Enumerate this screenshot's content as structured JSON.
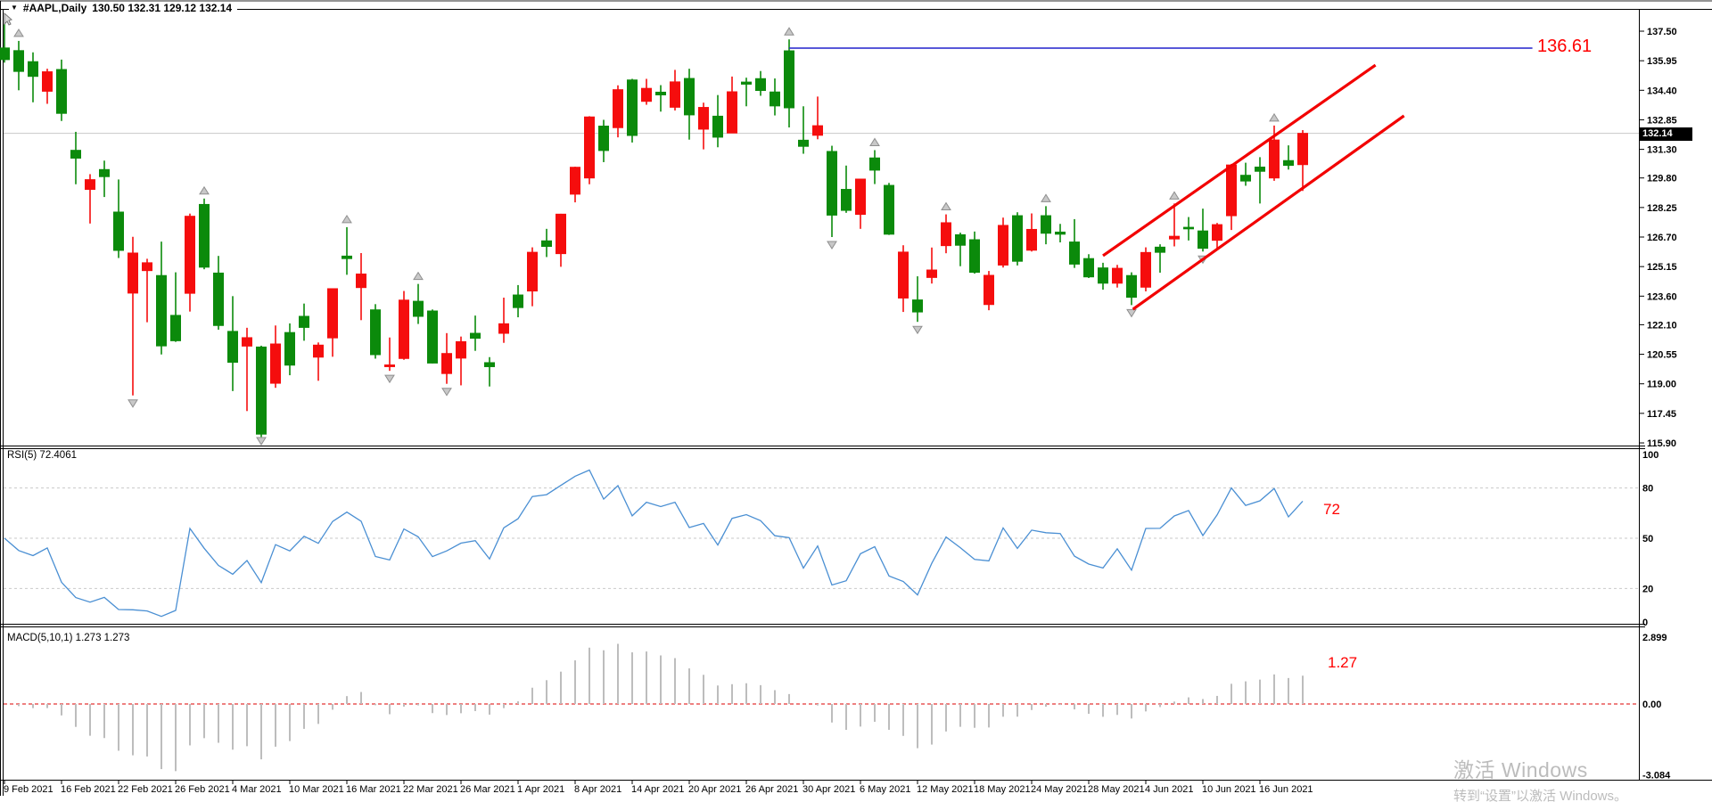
{
  "window": {
    "dropdown_icon": "▼",
    "symbol_period": "#AAPL,Daily",
    "ohlc_line": "130.50 132.31 129.12 132.14",
    "current_price": "132.14"
  },
  "indicator_labels": {
    "rsi": "RSI(5) 72.4061",
    "macd": "MACD(5,10,1) 1.273 1.273"
  },
  "annotations": {
    "resistance_label": "136.61",
    "rsi_label": "72",
    "macd_label": "1.27"
  },
  "watermark": {
    "line1": "激活 Windows",
    "line2": "转到“设置”以激活 Windows。"
  },
  "axes": {
    "price_ticks": [
      "137.50",
      "135.95",
      "134.40",
      "132.85",
      "131.30",
      "129.80",
      "128.25",
      "126.70",
      "125.15",
      "123.60",
      "122.10",
      "120.55",
      "119.00",
      "117.45",
      "115.90"
    ],
    "rsi_ticks": [
      "100",
      "80",
      "50",
      "20",
      "0"
    ],
    "rsi_dashed_levels": [
      80,
      50,
      20
    ],
    "macd_ticks": [
      "2.899",
      "0.00",
      "-3.084"
    ],
    "dates": [
      "9 Feb 2021",
      "16 Feb 2021",
      "22 Feb 2021",
      "26 Feb 2021",
      "4 Mar 2021",
      "10 Mar 2021",
      "16 Mar 2021",
      "22 Mar 2021",
      "26 Mar 2021",
      "1 Apr 2021",
      "8 Apr 2021",
      "14 Apr 2021",
      "20 Apr 2021",
      "26 Apr 2021",
      "30 Apr 2021",
      "6 May 2021",
      "12 May 2021",
      "18 May 2021",
      "24 May 2021",
      "28 May 2021",
      "4 Jun 2021",
      "10 Jun 2021",
      "16 Jun 2021"
    ],
    "date_label_step_bars": 4
  },
  "chart_data": {
    "type": "candlestick",
    "symbol": "#AAPL",
    "timeframe": "Daily",
    "title": "#AAPL,Daily 130.50 132.31 129.12 132.14",
    "ylim": [
      115.9,
      137.5
    ],
    "rsi_ylim": [
      0,
      100
    ],
    "macd_ylim": [
      -3.084,
      2.899
    ],
    "colors": {
      "bull": "#f50d0d",
      "bear": "#0b8a0b",
      "rsi_line": "#4a8fd3",
      "macd_hist": "#bdbdbd",
      "annotation_red": "#ff0000",
      "resistance_blue": "#2121cc",
      "grid_gray": "#c9c9c9",
      "macd_zero_red": "#dd0000",
      "fractal_gray": "#c8c8c8"
    },
    "candles": [
      [
        "2021-02-09",
        136.62,
        137.88,
        135.85,
        136.01
      ],
      [
        "2021-02-10",
        136.48,
        136.99,
        134.4,
        135.39
      ],
      [
        "2021-02-11",
        135.9,
        136.39,
        133.77,
        135.13
      ],
      [
        "2021-02-12",
        134.35,
        135.53,
        133.69,
        135.37
      ],
      [
        "2021-02-16",
        135.49,
        136.01,
        132.79,
        133.19
      ],
      [
        "2021-02-17",
        131.25,
        132.22,
        129.47,
        130.84
      ],
      [
        "2021-02-18",
        129.2,
        130.0,
        127.41,
        129.71
      ],
      [
        "2021-02-19",
        130.24,
        130.71,
        128.8,
        129.87
      ],
      [
        "2021-02-22",
        128.01,
        129.72,
        125.6,
        126.0
      ],
      [
        "2021-02-23",
        123.76,
        126.71,
        118.39,
        125.86
      ],
      [
        "2021-02-24",
        124.94,
        125.56,
        122.23,
        125.35
      ],
      [
        "2021-02-25",
        124.68,
        126.46,
        120.54,
        120.99
      ],
      [
        "2021-02-26",
        122.59,
        124.85,
        121.2,
        121.26
      ],
      [
        "2021-03-01",
        123.75,
        127.93,
        122.79,
        127.79
      ],
      [
        "2021-03-02",
        128.41,
        128.72,
        125.01,
        125.12
      ],
      [
        "2021-03-03",
        124.81,
        125.71,
        121.84,
        122.06
      ],
      [
        "2021-03-04",
        121.75,
        123.6,
        118.62,
        120.13
      ],
      [
        "2021-03-05",
        120.98,
        121.94,
        117.57,
        121.42
      ],
      [
        "2021-03-08",
        120.93,
        121.0,
        116.21,
        116.36
      ],
      [
        "2021-03-09",
        119.03,
        122.06,
        118.79,
        121.09
      ],
      [
        "2021-03-10",
        121.69,
        122.17,
        119.45,
        119.98
      ],
      [
        "2021-03-11",
        122.54,
        123.21,
        121.26,
        121.96
      ],
      [
        "2021-03-12",
        120.4,
        121.17,
        119.16,
        121.03
      ],
      [
        "2021-03-15",
        121.41,
        124.0,
        120.42,
        123.99
      ],
      [
        "2021-03-16",
        125.7,
        127.22,
        124.72,
        125.57
      ],
      [
        "2021-03-17",
        124.05,
        125.86,
        122.34,
        124.76
      ],
      [
        "2021-03-18",
        122.88,
        123.18,
        120.32,
        120.53
      ],
      [
        "2021-03-19",
        119.9,
        121.43,
        119.68,
        119.99
      ],
      [
        "2021-03-22",
        120.33,
        123.87,
        120.26,
        123.39
      ],
      [
        "2021-03-23",
        123.33,
        124.24,
        122.14,
        122.54
      ],
      [
        "2021-03-24",
        122.82,
        122.9,
        120.07,
        120.09
      ],
      [
        "2021-03-25",
        119.54,
        121.66,
        119.0,
        120.59
      ],
      [
        "2021-03-26",
        120.35,
        121.48,
        118.92,
        121.21
      ],
      [
        "2021-03-29",
        121.65,
        122.58,
        120.73,
        121.39
      ],
      [
        "2021-03-30",
        120.11,
        120.4,
        118.86,
        119.9
      ],
      [
        "2021-03-31",
        121.65,
        123.52,
        121.15,
        122.15
      ],
      [
        "2021-04-01",
        123.66,
        124.18,
        122.49,
        123.0
      ],
      [
        "2021-04-05",
        123.87,
        126.16,
        123.07,
        125.9
      ],
      [
        "2021-04-06",
        126.5,
        127.13,
        125.65,
        126.21
      ],
      [
        "2021-04-07",
        125.83,
        127.92,
        125.14,
        127.9
      ],
      [
        "2021-04-08",
        128.95,
        130.39,
        128.52,
        130.36
      ],
      [
        "2021-04-09",
        129.8,
        133.04,
        129.47,
        133.0
      ],
      [
        "2021-04-12",
        132.52,
        132.85,
        130.63,
        131.24
      ],
      [
        "2021-04-13",
        132.44,
        134.66,
        131.93,
        134.43
      ],
      [
        "2021-04-14",
        134.94,
        135.0,
        131.66,
        132.03
      ],
      [
        "2021-04-15",
        133.82,
        135.0,
        133.64,
        134.5
      ],
      [
        "2021-04-16",
        134.3,
        134.67,
        133.28,
        134.16
      ],
      [
        "2021-04-19",
        133.51,
        135.47,
        133.34,
        134.84
      ],
      [
        "2021-04-20",
        135.02,
        135.53,
        131.81,
        133.11
      ],
      [
        "2021-04-21",
        132.36,
        133.75,
        131.3,
        133.5
      ],
      [
        "2021-04-22",
        133.04,
        134.15,
        131.41,
        131.94
      ],
      [
        "2021-04-23",
        132.16,
        135.12,
        132.16,
        134.32
      ],
      [
        "2021-04-26",
        134.83,
        135.06,
        133.56,
        134.72
      ],
      [
        "2021-04-27",
        135.01,
        135.41,
        134.11,
        134.39
      ],
      [
        "2021-04-28",
        134.31,
        135.02,
        133.08,
        133.58
      ],
      [
        "2021-04-29",
        136.47,
        137.07,
        132.45,
        133.48
      ],
      [
        "2021-04-30",
        131.78,
        133.56,
        131.07,
        131.46
      ],
      [
        "2021-05-03",
        132.04,
        134.07,
        131.83,
        132.54
      ],
      [
        "2021-05-04",
        131.19,
        131.49,
        126.7,
        127.85
      ],
      [
        "2021-05-05",
        129.2,
        130.45,
        127.97,
        128.1
      ],
      [
        "2021-05-06",
        127.89,
        129.75,
        127.13,
        129.74
      ],
      [
        "2021-05-07",
        130.85,
        131.26,
        129.48,
        130.21
      ],
      [
        "2021-05-10",
        129.41,
        129.54,
        126.81,
        126.85
      ],
      [
        "2021-05-11",
        123.5,
        126.27,
        122.77,
        125.91
      ],
      [
        "2021-05-12",
        123.4,
        124.64,
        122.25,
        122.77
      ],
      [
        "2021-05-13",
        124.58,
        126.15,
        124.26,
        124.97
      ],
      [
        "2021-05-14",
        126.25,
        127.89,
        125.85,
        127.45
      ],
      [
        "2021-05-17",
        126.82,
        126.93,
        125.17,
        126.27
      ],
      [
        "2021-05-18",
        126.56,
        126.99,
        124.78,
        124.85
      ],
      [
        "2021-05-19",
        123.16,
        124.92,
        122.86,
        124.69
      ],
      [
        "2021-05-20",
        125.23,
        127.72,
        125.1,
        127.31
      ],
      [
        "2021-05-21",
        127.82,
        128.0,
        125.21,
        125.43
      ],
      [
        "2021-05-24",
        126.01,
        127.94,
        125.94,
        127.1
      ],
      [
        "2021-05-25",
        127.82,
        128.32,
        126.32,
        126.9
      ],
      [
        "2021-05-26",
        126.96,
        127.39,
        126.42,
        126.85
      ],
      [
        "2021-05-27",
        126.44,
        127.64,
        125.08,
        125.28
      ],
      [
        "2021-05-28",
        125.57,
        125.8,
        124.55,
        124.61
      ],
      [
        "2021-06-01",
        125.08,
        125.35,
        123.94,
        124.28
      ],
      [
        "2021-06-02",
        124.28,
        125.24,
        124.05,
        125.06
      ],
      [
        "2021-06-03",
        124.68,
        124.85,
        123.13,
        123.54
      ],
      [
        "2021-06-04",
        124.07,
        126.16,
        123.85,
        125.89
      ],
      [
        "2021-06-07",
        126.17,
        126.32,
        124.83,
        125.9
      ],
      [
        "2021-06-08",
        126.6,
        128.46,
        126.21,
        126.74
      ],
      [
        "2021-06-09",
        127.21,
        127.75,
        126.52,
        127.13
      ],
      [
        "2021-06-10",
        127.02,
        128.19,
        125.94,
        126.11
      ],
      [
        "2021-06-11",
        126.53,
        127.44,
        126.1,
        127.35
      ],
      [
        "2021-06-14",
        127.82,
        130.54,
        127.07,
        130.48
      ],
      [
        "2021-06-15",
        129.94,
        130.6,
        129.39,
        129.64
      ],
      [
        "2021-06-16",
        130.37,
        130.89,
        128.46,
        130.15
      ],
      [
        "2021-06-17",
        129.8,
        132.55,
        129.65,
        131.79
      ],
      [
        "2021-06-18",
        130.71,
        131.51,
        130.24,
        130.46
      ],
      [
        "2021-06-21",
        130.5,
        132.31,
        129.12,
        132.14
      ]
    ],
    "indicators": {
      "rsi": {
        "period": 5,
        "last_value": 72.4061
      },
      "macd": {
        "fast": 5,
        "slow": 10,
        "signal": 1,
        "last_value": 1.273
      }
    },
    "overlays": {
      "resistance_line": {
        "price": 136.61,
        "from_bar": 55,
        "to_bar": 107.1
      },
      "channel_upper": {
        "from": {
          "bar": 77.0,
          "price": 125.72
        },
        "to": {
          "bar": 96.1,
          "price": 135.72
        }
      },
      "channel_lower": {
        "from": {
          "bar": 79.1,
          "price": 122.91
        },
        "to": {
          "bar": 98.1,
          "price": 133.06
        }
      },
      "fractals": [
        {
          "bar": 1,
          "dir": "up"
        },
        {
          "bar": 9,
          "dir": "down"
        },
        {
          "bar": 14,
          "dir": "up"
        },
        {
          "bar": 18,
          "dir": "down"
        },
        {
          "bar": 24,
          "dir": "up"
        },
        {
          "bar": 27,
          "dir": "down"
        },
        {
          "bar": 29,
          "dir": "up"
        },
        {
          "bar": 31,
          "dir": "down"
        },
        {
          "bar": 55,
          "dir": "up"
        },
        {
          "bar": 58,
          "dir": "down"
        },
        {
          "bar": 61,
          "dir": "up"
        },
        {
          "bar": 64,
          "dir": "down"
        },
        {
          "bar": 66,
          "dir": "up"
        },
        {
          "bar": 73,
          "dir": "up"
        },
        {
          "bar": 79,
          "dir": "down"
        },
        {
          "bar": 82,
          "dir": "up"
        },
        {
          "bar": 84,
          "dir": "down"
        },
        {
          "bar": 89,
          "dir": "up"
        }
      ]
    }
  }
}
